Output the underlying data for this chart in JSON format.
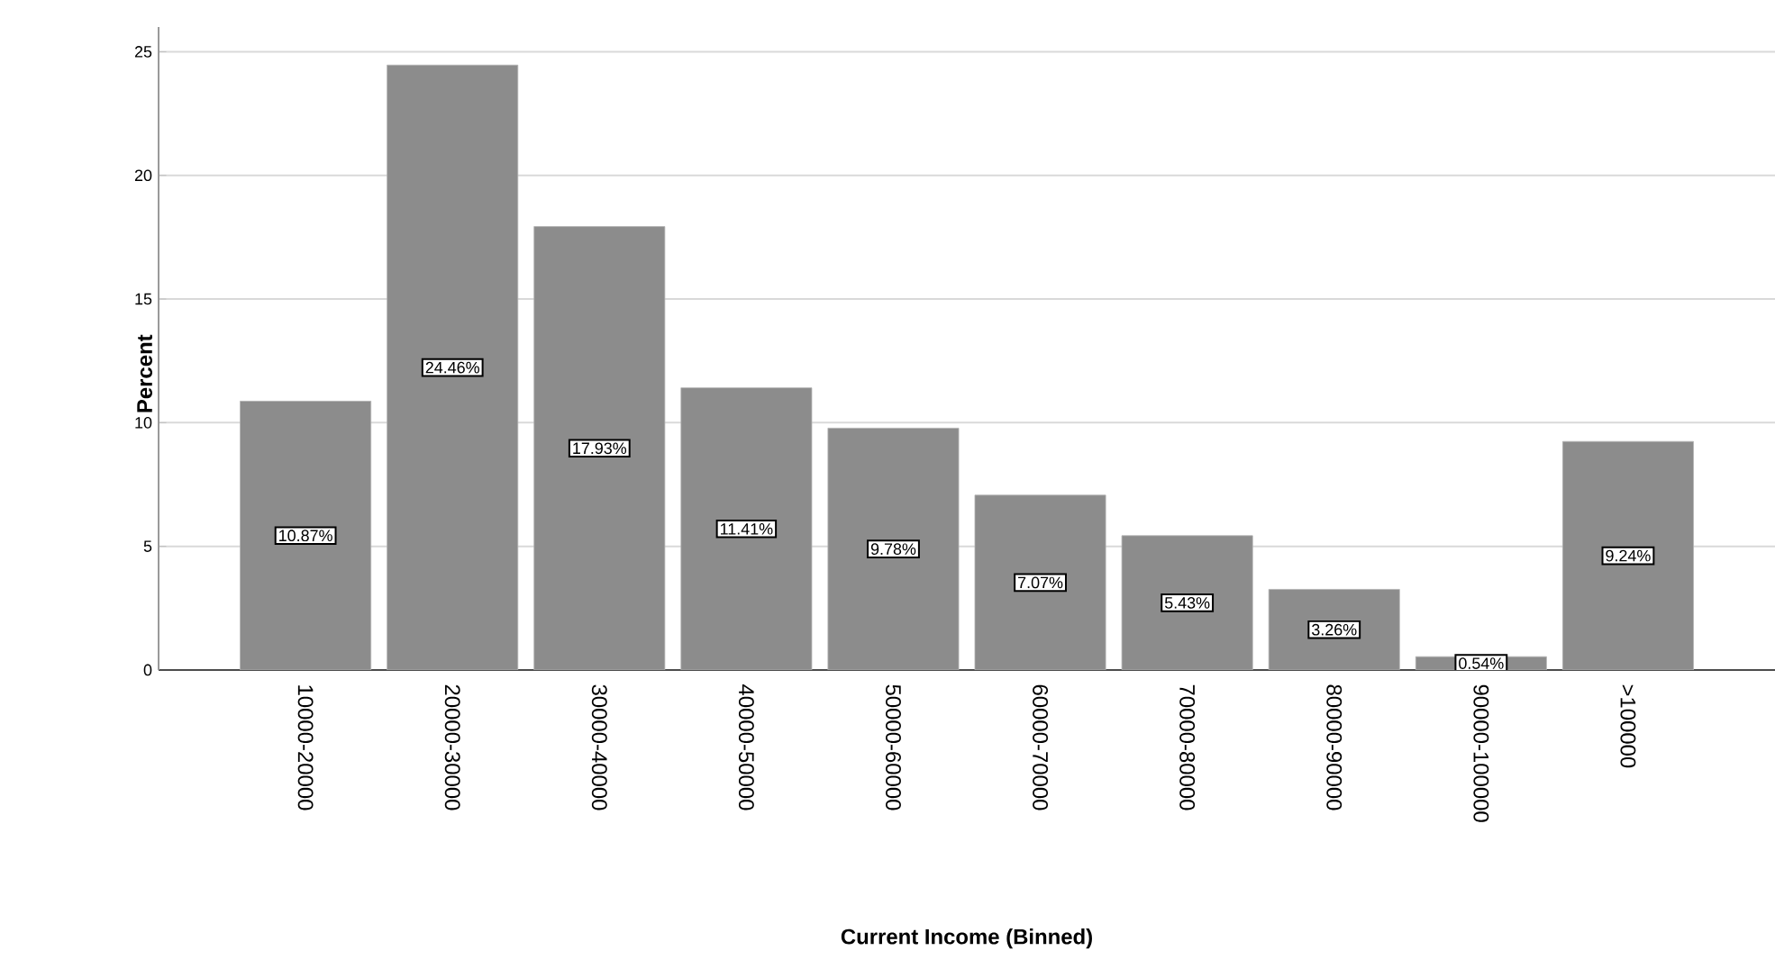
{
  "chart_data": {
    "type": "bar",
    "xlabel": "Current Income (Binned)",
    "ylabel": "Percent",
    "categories": [
      "10000-20000",
      "20000-30000",
      "30000-40000",
      "40000-50000",
      "50000-60000",
      "60000-70000",
      "70000-80000",
      "80000-90000",
      "90000-100000",
      ">100000"
    ],
    "values": [
      10.87,
      24.46,
      17.93,
      11.41,
      9.78,
      7.07,
      5.43,
      3.26,
      0.54,
      9.24
    ],
    "value_labels": [
      "10.87%",
      "24.46%",
      "17.93%",
      "11.41%",
      "9.78%",
      "7.07%",
      "5.43%",
      "3.26%",
      "0.54%",
      "9.24%"
    ],
    "color": "#8c8c8c",
    "ylim": [
      0,
      26
    ],
    "yticks": [
      0,
      5,
      10,
      15,
      20,
      25
    ],
    "grid": "y"
  }
}
